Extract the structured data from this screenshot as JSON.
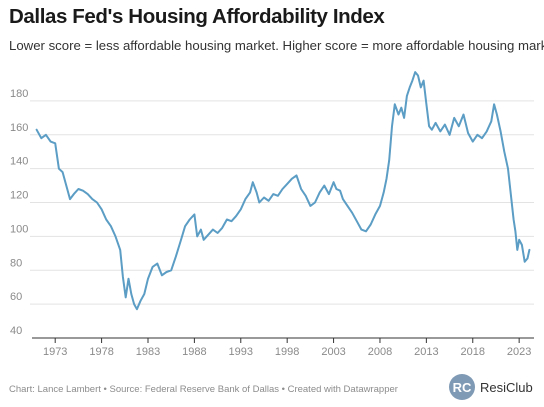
{
  "header": {
    "title": "Dallas Fed's Housing Affordability Index",
    "subtitle": "Lower score = less affordable housing market. Higher score = more affordable housing market."
  },
  "footer": {
    "credits": "Chart: Lance Lambert • Source: Federal Reserve Bank of Dallas • Created with Datawrapper",
    "brand_name": "ResiClub",
    "brand_logo_text": "RC"
  },
  "colors": {
    "line": "#5b9dc4",
    "grid": "#e3e3e3",
    "axis": "#333333",
    "logo": "#7f9ab5"
  },
  "chart_data": {
    "type": "line",
    "title": "Dallas Fed's Housing Affordability Index",
    "xlabel": "",
    "ylabel": "",
    "xlim": [
      1970.5,
      2024.6
    ],
    "ylim": [
      40,
      190
    ],
    "y_ticks": [
      40,
      60,
      80,
      100,
      120,
      140,
      160,
      180
    ],
    "x_ticks": [
      1973,
      1978,
      1983,
      1988,
      1993,
      1998,
      2003,
      2008,
      2013,
      2018,
      2023
    ],
    "grid": true,
    "legend": "none",
    "series": [
      {
        "values": [
          [
            1971.0,
            163
          ],
          [
            1971.5,
            158
          ],
          [
            1972.0,
            160
          ],
          [
            1972.5,
            156
          ],
          [
            1973.0,
            155
          ],
          [
            1973.4,
            140
          ],
          [
            1973.8,
            138
          ],
          [
            1974.2,
            130
          ],
          [
            1974.6,
            122
          ],
          [
            1975.0,
            125
          ],
          [
            1975.5,
            128
          ],
          [
            1976.0,
            127
          ],
          [
            1976.5,
            125
          ],
          [
            1977.0,
            122
          ],
          [
            1977.5,
            120
          ],
          [
            1978.0,
            116
          ],
          [
            1978.5,
            110
          ],
          [
            1979.0,
            106
          ],
          [
            1979.5,
            100
          ],
          [
            1980.0,
            92
          ],
          [
            1980.3,
            76
          ],
          [
            1980.6,
            64
          ],
          [
            1980.9,
            75
          ],
          [
            1981.2,
            66
          ],
          [
            1981.5,
            60
          ],
          [
            1981.8,
            57
          ],
          [
            1982.2,
            62
          ],
          [
            1982.6,
            66
          ],
          [
            1983.0,
            75
          ],
          [
            1983.5,
            82
          ],
          [
            1984.0,
            84
          ],
          [
            1984.5,
            77
          ],
          [
            1985.0,
            79
          ],
          [
            1985.5,
            80
          ],
          [
            1986.0,
            88
          ],
          [
            1986.5,
            97
          ],
          [
            1987.0,
            106
          ],
          [
            1987.5,
            110
          ],
          [
            1988.0,
            113
          ],
          [
            1988.3,
            100
          ],
          [
            1988.7,
            104
          ],
          [
            1989.0,
            98
          ],
          [
            1989.5,
            101
          ],
          [
            1990.0,
            104
          ],
          [
            1990.5,
            102
          ],
          [
            1991.0,
            105
          ],
          [
            1991.5,
            110
          ],
          [
            1992.0,
            109
          ],
          [
            1992.5,
            112
          ],
          [
            1993.0,
            116
          ],
          [
            1993.5,
            122
          ],
          [
            1994.0,
            126
          ],
          [
            1994.3,
            132
          ],
          [
            1994.7,
            126
          ],
          [
            1995.0,
            120
          ],
          [
            1995.5,
            123
          ],
          [
            1996.0,
            121
          ],
          [
            1996.5,
            125
          ],
          [
            1997.0,
            124
          ],
          [
            1997.5,
            128
          ],
          [
            1998.0,
            131
          ],
          [
            1998.5,
            134
          ],
          [
            1999.0,
            136
          ],
          [
            1999.5,
            128
          ],
          [
            2000.0,
            124
          ],
          [
            2000.5,
            118
          ],
          [
            2001.0,
            120
          ],
          [
            2001.5,
            126
          ],
          [
            2002.0,
            130
          ],
          [
            2002.5,
            125
          ],
          [
            2003.0,
            132
          ],
          [
            2003.3,
            128
          ],
          [
            2003.7,
            127
          ],
          [
            2004.0,
            122
          ],
          [
            2004.5,
            118
          ],
          [
            2005.0,
            114
          ],
          [
            2005.5,
            109
          ],
          [
            2006.0,
            104
          ],
          [
            2006.5,
            103
          ],
          [
            2007.0,
            107
          ],
          [
            2007.5,
            113
          ],
          [
            2008.0,
            118
          ],
          [
            2008.4,
            126
          ],
          [
            2008.7,
            134
          ],
          [
            2009.0,
            145
          ],
          [
            2009.3,
            165
          ],
          [
            2009.6,
            178
          ],
          [
            2010.0,
            172
          ],
          [
            2010.3,
            176
          ],
          [
            2010.6,
            170
          ],
          [
            2010.9,
            183
          ],
          [
            2011.2,
            188
          ],
          [
            2011.5,
            192
          ],
          [
            2011.8,
            197
          ],
          [
            2012.1,
            195
          ],
          [
            2012.4,
            188
          ],
          [
            2012.7,
            192
          ],
          [
            2013.0,
            178
          ],
          [
            2013.3,
            165
          ],
          [
            2013.6,
            163
          ],
          [
            2014.0,
            167
          ],
          [
            2014.5,
            162
          ],
          [
            2015.0,
            166
          ],
          [
            2015.5,
            160
          ],
          [
            2016.0,
            170
          ],
          [
            2016.5,
            165
          ],
          [
            2017.0,
            172
          ],
          [
            2017.5,
            161
          ],
          [
            2018.0,
            156
          ],
          [
            2018.5,
            160
          ],
          [
            2019.0,
            158
          ],
          [
            2019.5,
            162
          ],
          [
            2020.0,
            168
          ],
          [
            2020.3,
            178
          ],
          [
            2020.6,
            172
          ],
          [
            2021.0,
            162
          ],
          [
            2021.4,
            150
          ],
          [
            2021.8,
            140
          ],
          [
            2022.1,
            125
          ],
          [
            2022.4,
            110
          ],
          [
            2022.6,
            103
          ],
          [
            2022.8,
            92
          ],
          [
            2023.0,
            98
          ],
          [
            2023.3,
            95
          ],
          [
            2023.6,
            85
          ],
          [
            2023.9,
            87
          ],
          [
            2024.1,
            92
          ]
        ]
      }
    ]
  }
}
